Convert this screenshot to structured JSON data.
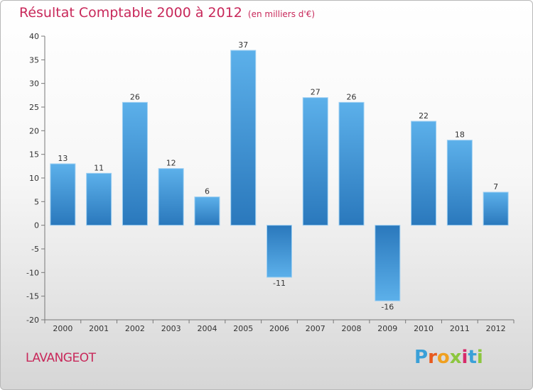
{
  "header": {
    "title": "Résultat Comptable 2000 à 2012",
    "subtitle": "(en milliers d'€)"
  },
  "footer": {
    "place": "LAVANGEOT",
    "logo_letters": [
      "P",
      "r",
      "o",
      "x",
      "i",
      "t",
      "i"
    ]
  },
  "colors": {
    "title": "#c8285a",
    "bar_light": "#5aaee8",
    "bar_dark": "#2a7cc0"
  },
  "chart_data": {
    "type": "bar",
    "categories": [
      "2000",
      "2001",
      "2002",
      "2003",
      "2004",
      "2005",
      "2006",
      "2007",
      "2008",
      "2009",
      "2010",
      "2011",
      "2012"
    ],
    "values": [
      13,
      11,
      26,
      12,
      6,
      37,
      -11,
      27,
      26,
      -16,
      22,
      18,
      7
    ],
    "data_labels": [
      "13",
      "11",
      "26",
      "12",
      "6",
      "37",
      "-11",
      "27",
      "26",
      "-16",
      "22",
      "18",
      "7"
    ],
    "y_ticks": [
      40,
      35,
      30,
      25,
      20,
      15,
      10,
      5,
      0,
      -5,
      -10,
      -15,
      -20
    ],
    "ylim": [
      -20,
      40
    ],
    "grid": false,
    "legend": "none"
  }
}
